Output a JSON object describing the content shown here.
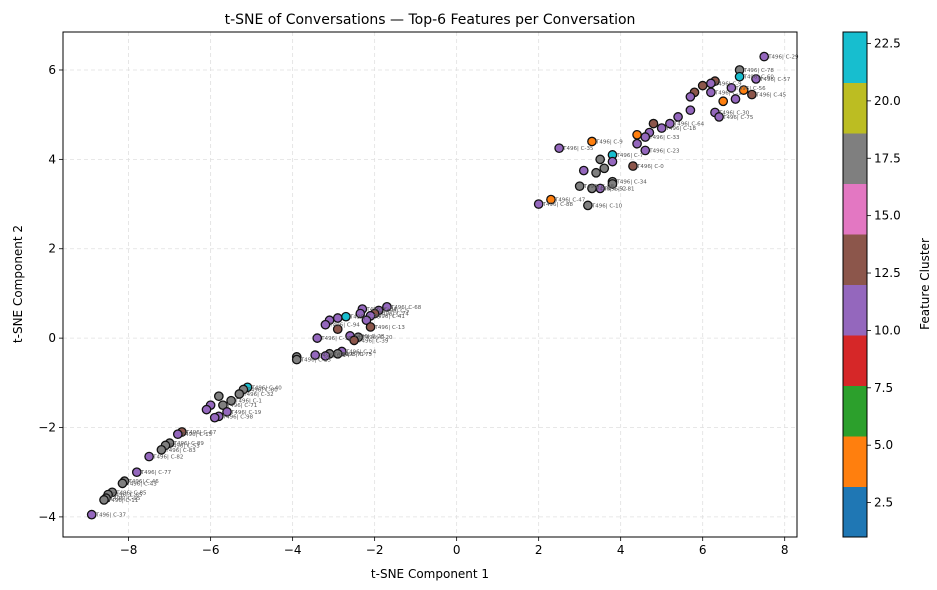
{
  "chart_data": {
    "type": "scatter",
    "title": "t-SNE of Conversations — Top-6 Features per Conversation",
    "xlabel": "t-SNE Component 1",
    "ylabel": "t-SNE Component 2",
    "xlim": [
      -9.6,
      8.3
    ],
    "ylim": [
      -4.45,
      6.85
    ],
    "xticks": [
      -8,
      -6,
      -4,
      -2,
      0,
      2,
      4,
      6,
      8
    ],
    "yticks": [
      -4,
      -2,
      0,
      2,
      4,
      6
    ],
    "grid": true,
    "colorbar": {
      "label": "Feature Cluster",
      "range": [
        1,
        23
      ],
      "ticks": [
        2.5,
        5.0,
        7.5,
        10.0,
        12.5,
        15.0,
        17.5,
        20.0,
        22.5
      ],
      "colors": [
        "#1f77b4",
        "#ff7f0e",
        "#2ca02c",
        "#d62728",
        "#9467bd",
        "#8c564b",
        "#e377c2",
        "#7f7f7f",
        "#bcbd22",
        "#17becf"
      ]
    },
    "points": [
      {
        "x": 7.5,
        "y": 6.3,
        "c": 10,
        "label": "T496| C-29"
      },
      {
        "x": 6.9,
        "y": 6.0,
        "c": 17,
        "label": "T496| C-78"
      },
      {
        "x": 6.9,
        "y": 5.85,
        "c": 22,
        "label": "T496| C-60"
      },
      {
        "x": 7.3,
        "y": 5.8,
        "c": 10,
        "label": "T496| C-57"
      },
      {
        "x": 6.3,
        "y": 5.75,
        "c": 13,
        "label": ""
      },
      {
        "x": 6.2,
        "y": 5.7,
        "c": 10,
        "label": "T496| C-9"
      },
      {
        "x": 6.0,
        "y": 5.65,
        "c": 13,
        "label": ""
      },
      {
        "x": 6.7,
        "y": 5.6,
        "c": 10,
        "label": "T496| C-56"
      },
      {
        "x": 7.0,
        "y": 5.55,
        "c": 5,
        "label": ""
      },
      {
        "x": 6.2,
        "y": 5.5,
        "c": 10,
        "label": "T496| C-1"
      },
      {
        "x": 5.8,
        "y": 5.5,
        "c": 13,
        "label": ""
      },
      {
        "x": 5.7,
        "y": 5.4,
        "c": 10,
        "label": ""
      },
      {
        "x": 7.2,
        "y": 5.45,
        "c": 13,
        "label": "T496| C-45"
      },
      {
        "x": 6.5,
        "y": 5.3,
        "c": 5,
        "label": ""
      },
      {
        "x": 6.8,
        "y": 5.35,
        "c": 10,
        "label": ""
      },
      {
        "x": 5.7,
        "y": 5.1,
        "c": 10,
        "label": ""
      },
      {
        "x": 6.3,
        "y": 5.05,
        "c": 10,
        "label": "T496| C-30"
      },
      {
        "x": 6.4,
        "y": 4.95,
        "c": 10,
        "label": "T496| C-75"
      },
      {
        "x": 5.4,
        "y": 4.95,
        "c": 10,
        "label": ""
      },
      {
        "x": 5.2,
        "y": 4.8,
        "c": 10,
        "label": "T496| C-64"
      },
      {
        "x": 4.8,
        "y": 4.8,
        "c": 13,
        "label": ""
      },
      {
        "x": 5.0,
        "y": 4.7,
        "c": 10,
        "label": "T496| C-18"
      },
      {
        "x": 4.7,
        "y": 4.6,
        "c": 10,
        "label": ""
      },
      {
        "x": 4.4,
        "y": 4.55,
        "c": 5,
        "label": ""
      },
      {
        "x": 4.6,
        "y": 4.5,
        "c": 10,
        "label": "T496| C-33"
      },
      {
        "x": 3.3,
        "y": 4.4,
        "c": 5,
        "label": "T496| C-9"
      },
      {
        "x": 4.4,
        "y": 4.35,
        "c": 10,
        "label": ""
      },
      {
        "x": 2.5,
        "y": 4.25,
        "c": 10,
        "label": "T496| C-35"
      },
      {
        "x": 4.6,
        "y": 4.2,
        "c": 10,
        "label": "T496| C-23"
      },
      {
        "x": 3.8,
        "y": 4.1,
        "c": 22,
        "label": "T496| C-7"
      },
      {
        "x": 3.5,
        "y": 4.0,
        "c": 17,
        "label": ""
      },
      {
        "x": 3.8,
        "y": 3.95,
        "c": 10,
        "label": ""
      },
      {
        "x": 4.3,
        "y": 3.85,
        "c": 13,
        "label": "T496| C-0"
      },
      {
        "x": 3.6,
        "y": 3.8,
        "c": 17,
        "label": ""
      },
      {
        "x": 3.1,
        "y": 3.75,
        "c": 10,
        "label": ""
      },
      {
        "x": 3.4,
        "y": 3.7,
        "c": 17,
        "label": ""
      },
      {
        "x": 3.8,
        "y": 3.5,
        "c": 17,
        "label": "T496| C-34"
      },
      {
        "x": 3.8,
        "y": 3.45,
        "c": 17,
        "label": ""
      },
      {
        "x": 3.0,
        "y": 3.4,
        "c": 17,
        "label": "T496| C-98"
      },
      {
        "x": 3.5,
        "y": 3.35,
        "c": 10,
        "label": "T496| C-81"
      },
      {
        "x": 3.3,
        "y": 3.35,
        "c": 17,
        "label": "T496| C-52"
      },
      {
        "x": 2.3,
        "y": 3.1,
        "c": 5,
        "label": "T496| C-47"
      },
      {
        "x": 2.0,
        "y": 3.0,
        "c": 10,
        "label": "T496| C-88"
      },
      {
        "x": 3.2,
        "y": 2.97,
        "c": 17,
        "label": "T496| C-10"
      },
      {
        "x": -1.7,
        "y": 0.7,
        "c": 10,
        "label": "T496| C-68"
      },
      {
        "x": -1.9,
        "y": 0.62,
        "c": 10,
        "label": "T496| C-5"
      },
      {
        "x": -2.3,
        "y": 0.65,
        "c": 10,
        "label": "T496| C-84"
      },
      {
        "x": -2.0,
        "y": 0.55,
        "c": 13,
        "label": "T496| C-74"
      },
      {
        "x": -2.1,
        "y": 0.5,
        "c": 10,
        "label": "T496| C-41"
      },
      {
        "x": -2.35,
        "y": 0.55,
        "c": 10,
        "label": ""
      },
      {
        "x": -2.7,
        "y": 0.48,
        "c": 22,
        "label": "T496| C-50"
      },
      {
        "x": -2.9,
        "y": 0.45,
        "c": 10,
        "label": ""
      },
      {
        "x": -3.1,
        "y": 0.4,
        "c": 10,
        "label": ""
      },
      {
        "x": -2.2,
        "y": 0.4,
        "c": 10,
        "label": ""
      },
      {
        "x": -3.2,
        "y": 0.3,
        "c": 10,
        "label": "T496| C-94"
      },
      {
        "x": -2.1,
        "y": 0.25,
        "c": 13,
        "label": "T496| C-13"
      },
      {
        "x": -2.9,
        "y": 0.2,
        "c": 13,
        "label": ""
      },
      {
        "x": -3.4,
        "y": 0.0,
        "c": 10,
        "label": "T496| C-76"
      },
      {
        "x": -2.6,
        "y": 0.05,
        "c": 10,
        "label": "T496| C-28"
      },
      {
        "x": -2.4,
        "y": 0.02,
        "c": 17,
        "label": "T496| C-20"
      },
      {
        "x": -2.5,
        "y": -0.05,
        "c": 13,
        "label": "T496| C-39"
      },
      {
        "x": -2.8,
        "y": -0.3,
        "c": 10,
        "label": "T496| C-24"
      },
      {
        "x": -2.9,
        "y": -0.35,
        "c": 17,
        "label": "T496| C-75"
      },
      {
        "x": -3.1,
        "y": -0.35,
        "c": 17,
        "label": "T496| C-71"
      },
      {
        "x": -3.2,
        "y": -0.4,
        "c": 10,
        "label": ""
      },
      {
        "x": -3.45,
        "y": -0.38,
        "c": 10,
        "label": "T496| C-14"
      },
      {
        "x": -3.9,
        "y": -0.42,
        "c": 17,
        "label": ""
      },
      {
        "x": -3.9,
        "y": -0.48,
        "c": 17,
        "label": "T496| C-25"
      },
      {
        "x": -5.1,
        "y": -1.1,
        "c": 22,
        "label": "T496| C-40"
      },
      {
        "x": -5.2,
        "y": -1.15,
        "c": 17,
        "label": "T496| C-80"
      },
      {
        "x": -5.3,
        "y": -1.25,
        "c": 17,
        "label": "T496| C-32"
      },
      {
        "x": -5.8,
        "y": -1.3,
        "c": 17,
        "label": ""
      },
      {
        "x": -5.5,
        "y": -1.4,
        "c": 17,
        "label": "T496| C-1"
      },
      {
        "x": -5.7,
        "y": -1.5,
        "c": 17,
        "label": "T496| C-71"
      },
      {
        "x": -6.0,
        "y": -1.5,
        "c": 10,
        "label": ""
      },
      {
        "x": -6.1,
        "y": -1.6,
        "c": 10,
        "label": ""
      },
      {
        "x": -5.6,
        "y": -1.65,
        "c": 10,
        "label": "T496| C-19"
      },
      {
        "x": -5.8,
        "y": -1.75,
        "c": 10,
        "label": "T496| C-98"
      },
      {
        "x": -5.9,
        "y": -1.78,
        "c": 10,
        "label": ""
      },
      {
        "x": -6.7,
        "y": -2.1,
        "c": 13,
        "label": "T496| C-67"
      },
      {
        "x": -6.8,
        "y": -2.15,
        "c": 10,
        "label": "T496| C-15"
      },
      {
        "x": -7.0,
        "y": -2.35,
        "c": 17,
        "label": "T496| C-89"
      },
      {
        "x": -7.1,
        "y": -2.4,
        "c": 17,
        "label": "T496| C-53"
      },
      {
        "x": -7.2,
        "y": -2.5,
        "c": 17,
        "label": "T496| C-83"
      },
      {
        "x": -7.5,
        "y": -2.65,
        "c": 10,
        "label": "T496| C-82"
      },
      {
        "x": -7.8,
        "y": -3.0,
        "c": 10,
        "label": "T496| C-77"
      },
      {
        "x": -8.1,
        "y": -3.2,
        "c": 17,
        "label": "T496| C-46"
      },
      {
        "x": -8.15,
        "y": -3.25,
        "c": 17,
        "label": "T496| C-43"
      },
      {
        "x": -8.4,
        "y": -3.45,
        "c": 17,
        "label": "T496| C-85"
      },
      {
        "x": -8.5,
        "y": -3.5,
        "c": 17,
        "label": "T496| C-65"
      },
      {
        "x": -8.55,
        "y": -3.58,
        "c": 17,
        "label": "T496| C-95"
      },
      {
        "x": -8.6,
        "y": -3.62,
        "c": 17,
        "label": "T496| C-11"
      },
      {
        "x": -8.9,
        "y": -3.95,
        "c": 10,
        "label": "T496| C-37"
      }
    ]
  }
}
